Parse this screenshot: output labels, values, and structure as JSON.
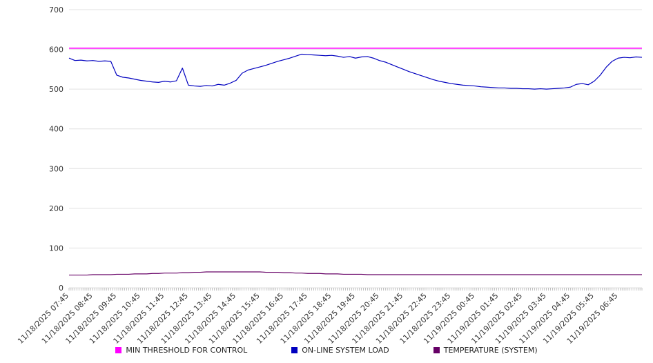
{
  "chart_data": {
    "type": "line",
    "title": "",
    "xlabel": "",
    "ylabel": "",
    "ylim": [
      0,
      700
    ],
    "y_ticks": [
      0,
      100,
      200,
      300,
      400,
      500,
      600,
      700
    ],
    "grid": true,
    "legend_position": "bottom",
    "sample_interval_minutes": 15,
    "x_tick_labels": [
      "11/18/2025 07:45",
      "11/18/2025 08:45",
      "11/18/2025 09:45",
      "11/18/2025 10:45",
      "11/18/2025 11:45",
      "11/18/2025 12:45",
      "11/18/2025 13:45",
      "11/18/2025 14:45",
      "11/18/2025 15:45",
      "11/18/2025 16:45",
      "11/18/2025 17:45",
      "11/18/2025 18:45",
      "11/18/2025 19:45",
      "11/18/2025 20:45",
      "11/18/2025 21:45",
      "11/18/2025 22:45",
      "11/18/2025 23:45",
      "11/19/2025 00:45",
      "11/19/2025 01:45",
      "11/19/2025 02:45",
      "11/19/2025 03:45",
      "11/19/2025 04:45",
      "11/19/2025 05:45",
      "11/19/2025 06:45"
    ],
    "series": [
      {
        "name": "MIN THRESHOLD FOR CONTROL",
        "color": "#ff00ff",
        "constant": 603
      },
      {
        "name": "ON-LINE SYSTEM LOAD",
        "color": "#0000bf",
        "values": [
          578,
          572,
          573,
          571,
          572,
          570,
          571,
          570,
          535,
          530,
          528,
          525,
          522,
          520,
          518,
          517,
          520,
          518,
          521,
          553,
          510,
          508,
          507,
          509,
          508,
          512,
          510,
          515,
          522,
          540,
          548,
          552,
          556,
          560,
          565,
          570,
          574,
          578,
          583,
          588,
          587,
          586,
          585,
          584,
          585,
          583,
          580,
          582,
          578,
          581,
          582,
          578,
          572,
          568,
          562,
          556,
          550,
          544,
          539,
          534,
          529,
          524,
          520,
          517,
          514,
          512,
          510,
          509,
          508,
          506,
          505,
          504,
          503,
          503,
          502,
          502,
          501,
          501,
          500,
          501,
          500,
          501,
          502,
          503,
          505,
          512,
          514,
          511,
          520,
          535,
          555,
          570,
          578,
          580,
          579,
          581,
          580
        ]
      },
      {
        "name": "TEMPERATURE (SYSTEM)",
        "color": "#660066",
        "values": [
          32,
          32,
          32,
          32,
          33,
          33,
          33,
          33,
          34,
          34,
          34,
          35,
          35,
          35,
          36,
          36,
          37,
          37,
          37,
          38,
          38,
          39,
          39,
          40,
          40,
          40,
          40,
          40,
          40,
          40,
          40,
          40,
          40,
          39,
          39,
          39,
          38,
          38,
          37,
          37,
          36,
          36,
          36,
          35,
          35,
          35,
          34,
          34,
          34,
          34,
          33,
          33,
          33,
          33,
          33,
          33,
          33,
          33,
          33,
          33,
          33,
          33,
          33,
          33,
          33,
          33,
          33,
          33,
          33,
          33,
          33,
          33,
          33,
          33,
          33,
          33,
          33,
          33,
          33,
          33,
          33,
          33,
          33,
          33,
          33,
          33,
          33,
          33,
          33,
          33,
          33,
          33,
          33,
          33,
          33,
          33,
          33
        ]
      }
    ],
    "axis_colors": {
      "grid": "#e0e0e0",
      "tick_text": "#333333",
      "minor_tick": "#999999"
    }
  }
}
